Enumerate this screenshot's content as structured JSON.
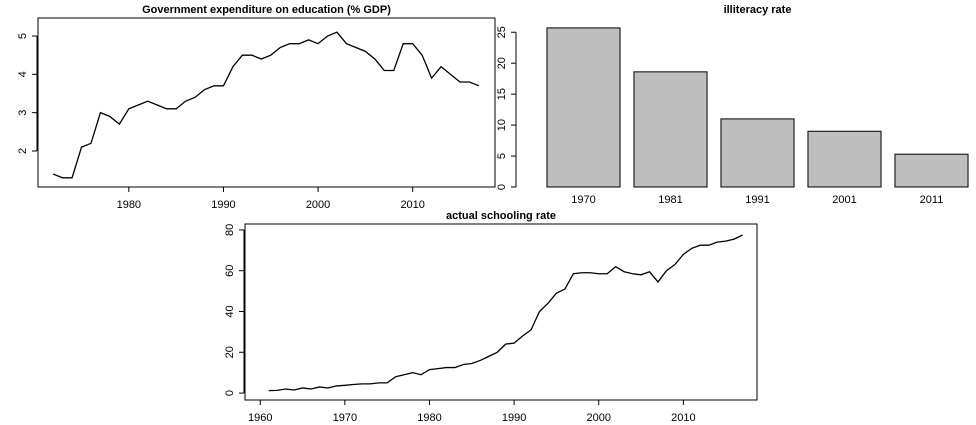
{
  "chart_data": [
    {
      "type": "line",
      "title": "Government expenditure on education (% GDP)",
      "x": [
        1972,
        1973,
        1974,
        1975,
        1976,
        1977,
        1978,
        1979,
        1980,
        1981,
        1982,
        1983,
        1984,
        1985,
        1986,
        1987,
        1988,
        1989,
        1990,
        1991,
        1992,
        1993,
        1994,
        1995,
        1996,
        1997,
        1998,
        1999,
        2000,
        2001,
        2002,
        2003,
        2004,
        2005,
        2006,
        2007,
        2008,
        2009,
        2010,
        2011,
        2012,
        2013,
        2014,
        2015,
        2016,
        2017
      ],
      "values": [
        1.4,
        1.3,
        1.3,
        2.1,
        2.2,
        3.0,
        2.9,
        2.7,
        3.1,
        3.2,
        3.3,
        3.2,
        3.1,
        3.1,
        3.3,
        3.4,
        3.6,
        3.7,
        3.7,
        4.2,
        4.5,
        4.5,
        4.4,
        4.5,
        4.7,
        4.8,
        4.8,
        4.9,
        4.8,
        5.0,
        5.1,
        4.8,
        4.7,
        4.6,
        4.4,
        4.1,
        4.1,
        4.8,
        4.8,
        4.5,
        3.9,
        4.2,
        4.0,
        3.8,
        3.8,
        3.7
      ],
      "color": "#000000",
      "xlim": [
        1970.4,
        2018.7
      ],
      "ylim": [
        1.06,
        5.47
      ],
      "xticks": [
        1980,
        1990,
        2000,
        2010
      ],
      "yticks": [
        2,
        3,
        4,
        5
      ]
    },
    {
      "type": "bar",
      "title": "illiteracy rate",
      "categories": [
        "1970",
        "1981",
        "1991",
        "2001",
        "2011"
      ],
      "values": [
        25.7,
        18.6,
        11.0,
        9.0,
        5.3
      ],
      "color": "#bebebe",
      "ylim": [
        0,
        27.3
      ],
      "yticks": [
        0,
        5,
        10,
        15,
        20,
        25
      ]
    },
    {
      "type": "line",
      "title": "actual schooling rate",
      "x": [
        1961,
        1962,
        1963,
        1964,
        1965,
        1966,
        1967,
        1968,
        1969,
        1970,
        1971,
        1972,
        1973,
        1974,
        1975,
        1976,
        1977,
        1978,
        1979,
        1980,
        1981,
        1982,
        1983,
        1984,
        1985,
        1986,
        1987,
        1988,
        1989,
        1990,
        1991,
        1992,
        1993,
        1994,
        1995,
        1996,
        1997,
        1998,
        1999,
        2000,
        2001,
        2002,
        2003,
        2004,
        2005,
        2006,
        2007,
        2008,
        2009,
        2010,
        2011,
        2012,
        2013,
        2014,
        2015,
        2016,
        2017
      ],
      "values": [
        1.2,
        1.3,
        2,
        1.5,
        2.5,
        2,
        3,
        2.5,
        3.5,
        3.8,
        4.2,
        4.5,
        4.5,
        5,
        5,
        8,
        9,
        10,
        9,
        11.5,
        12,
        12.5,
        12.5,
        14,
        14.5,
        16,
        18,
        20,
        24,
        24.5,
        28,
        31,
        40,
        44,
        49,
        51,
        58.5,
        59,
        59,
        58.5,
        58.5,
        62,
        59.5,
        58.5,
        58,
        59.5,
        54.5,
        60,
        63,
        68,
        71,
        72.5,
        72.5,
        74,
        74.5,
        75.5,
        77.5
      ],
      "color": "#000000",
      "xlim": [
        1958.2,
        2018.7
      ],
      "ylim": [
        -3.4,
        82.9
      ],
      "xticks": [
        1960,
        1970,
        1980,
        1990,
        2000,
        2010
      ],
      "yticks": [
        0,
        20,
        40,
        60,
        80
      ]
    }
  ]
}
